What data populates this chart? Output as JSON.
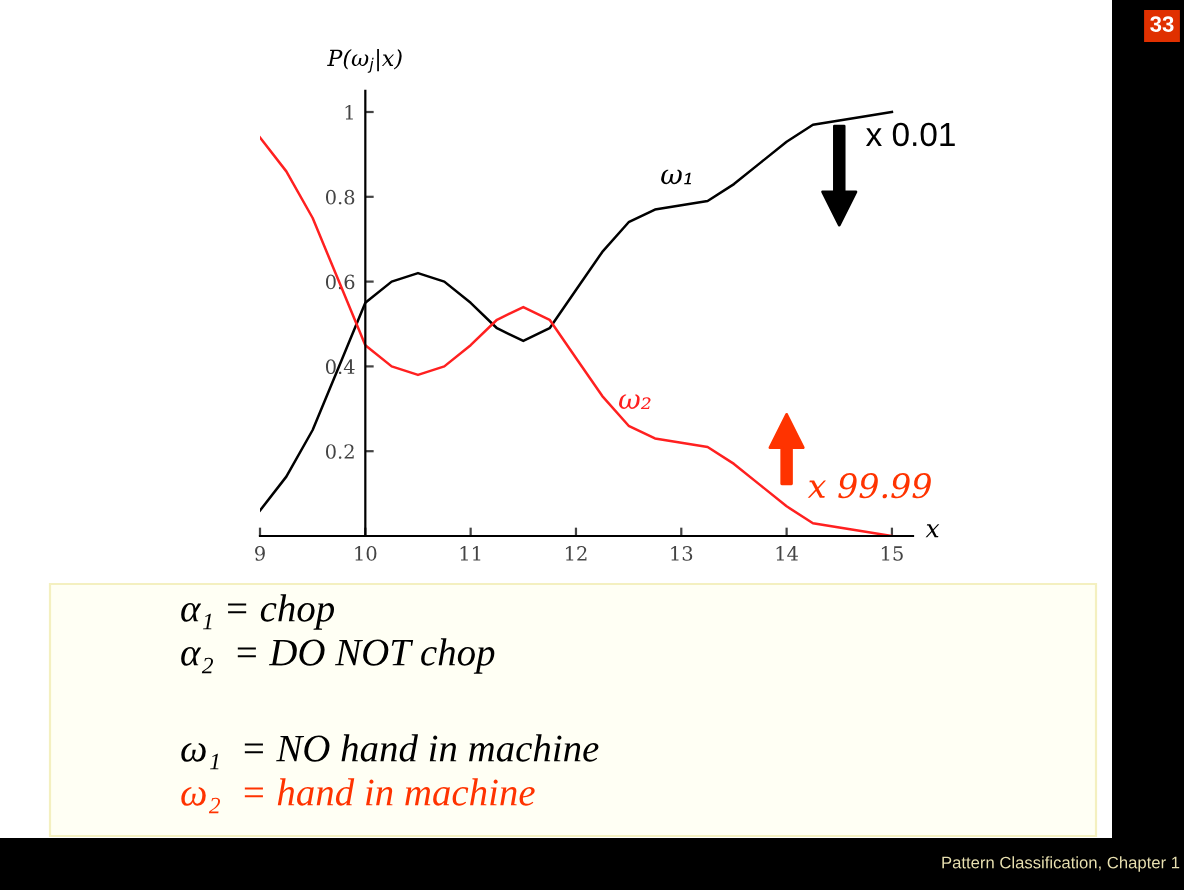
{
  "chart_data": {
    "type": "line",
    "ylabel": "P(ω$_{j}$|x)",
    "xlabel": "x",
    "x": [
      9,
      9.25,
      9.5,
      9.75,
      10,
      10.25,
      10.5,
      10.75,
      11,
      11.25,
      11.5,
      11.75,
      12,
      12.25,
      12.5,
      12.75,
      13,
      13.25,
      13.5,
      13.75,
      14,
      14.25,
      14.5,
      14.75,
      15
    ],
    "series": [
      {
        "name": "ω₁",
        "color": "#000000",
        "values": [
          0.06,
          0.14,
          0.25,
          0.4,
          0.55,
          0.6,
          0.62,
          0.6,
          0.55,
          0.49,
          0.46,
          0.49,
          0.58,
          0.67,
          0.74,
          0.77,
          0.78,
          0.79,
          0.83,
          0.88,
          0.93,
          0.97,
          0.98,
          0.99,
          1.0
        ]
      },
      {
        "name": "ω₂",
        "color": "#ff2020",
        "values": [
          0.94,
          0.86,
          0.75,
          0.6,
          0.45,
          0.4,
          0.38,
          0.4,
          0.45,
          0.51,
          0.54,
          0.51,
          0.42,
          0.33,
          0.26,
          0.23,
          0.22,
          0.21,
          0.17,
          0.12,
          0.07,
          0.03,
          0.02,
          0.01,
          0.0
        ]
      }
    ],
    "xlim": [
      9,
      15.2
    ],
    "ylim": [
      0,
      1.05
    ],
    "xticks": [
      9,
      10,
      11,
      12,
      13,
      14,
      15
    ],
    "yticks": [
      0.2,
      0.4,
      0.6,
      0.8,
      1
    ],
    "grid": false,
    "legend": false,
    "marker": "none",
    "line_style": "solid",
    "annotations": [
      {
        "text": "x 0.01",
        "x": 14.5,
        "y": 0.98
      },
      {
        "text": "x 99.99",
        "x": 14.1,
        "y": 0.07
      },
      "α₁ = chop",
      "α₂  = DO NOT chop",
      "ω₁  = NO hand in machine",
      "ω₂  = hand in machine",
      "33",
      "Pattern Classification, Chapter 1"
    ]
  }
}
